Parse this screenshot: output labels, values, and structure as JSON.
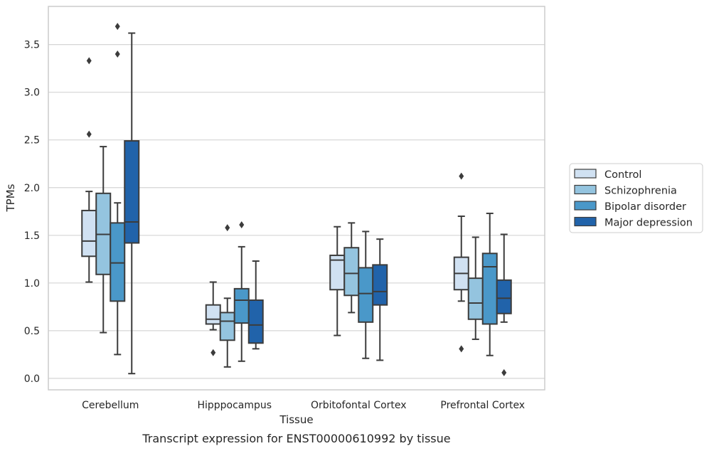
{
  "chart_data": {
    "type": "box",
    "xlabel": "Tissue",
    "ylabel": "TPMs",
    "caption": "Transcript expression for ENST00000610992 by tissue",
    "ylim": [
      -0.12,
      3.9
    ],
    "yticks": [
      0.0,
      0.5,
      1.0,
      1.5,
      2.0,
      2.5,
      3.0,
      3.5
    ],
    "ytick_labels": [
      "0.0",
      "0.5",
      "1.0",
      "1.5",
      "2.0",
      "2.5",
      "3.0",
      "3.5"
    ],
    "grid": "horizontal",
    "legend_position": "right",
    "categories": [
      "Cerebellum",
      "Hipppocampus",
      "Orbitofontal Cortex",
      "Prefrontal Cortex"
    ],
    "series": [
      {
        "name": "Control",
        "color": "#d0e1f2",
        "boxes": [
          {
            "whisker_low": 1.01,
            "q1": 1.28,
            "median": 1.44,
            "q3": 1.76,
            "whisker_high": 1.96,
            "outliers": [
              2.56,
              3.33
            ]
          },
          {
            "whisker_low": 0.51,
            "q1": 0.57,
            "median": 0.62,
            "q3": 0.77,
            "whisker_high": 1.01,
            "outliers": [
              0.27
            ]
          },
          {
            "whisker_low": 0.45,
            "q1": 0.93,
            "median": 1.24,
            "q3": 1.29,
            "whisker_high": 1.59,
            "outliers": []
          },
          {
            "whisker_low": 0.81,
            "q1": 0.93,
            "median": 1.1,
            "q3": 1.27,
            "whisker_high": 1.7,
            "outliers": [
              0.31,
              2.12
            ]
          }
        ]
      },
      {
        "name": "Schizophrenia",
        "color": "#94c4df",
        "boxes": [
          {
            "whisker_low": 0.48,
            "q1": 1.09,
            "median": 1.51,
            "q3": 1.94,
            "whisker_high": 2.43,
            "outliers": []
          },
          {
            "whisker_low": 0.12,
            "q1": 0.4,
            "median": 0.6,
            "q3": 0.69,
            "whisker_high": 0.84,
            "outliers": [
              1.58
            ]
          },
          {
            "whisker_low": 0.69,
            "q1": 0.87,
            "median": 1.1,
            "q3": 1.37,
            "whisker_high": 1.63,
            "outliers": []
          },
          {
            "whisker_low": 0.41,
            "q1": 0.62,
            "median": 0.79,
            "q3": 1.05,
            "whisker_high": 1.48,
            "outliers": []
          }
        ]
      },
      {
        "name": "Bipolar disorder",
        "color": "#4a98c9",
        "boxes": [
          {
            "whisker_low": 0.25,
            "q1": 0.81,
            "median": 1.21,
            "q3": 1.63,
            "whisker_high": 1.84,
            "outliers": [
              3.4,
              3.69
            ]
          },
          {
            "whisker_low": 0.18,
            "q1": 0.58,
            "median": 0.82,
            "q3": 0.94,
            "whisker_high": 1.38,
            "outliers": [
              1.61
            ]
          },
          {
            "whisker_low": 0.21,
            "q1": 0.59,
            "median": 0.89,
            "q3": 1.16,
            "whisker_high": 1.54,
            "outliers": []
          },
          {
            "whisker_low": 0.24,
            "q1": 0.57,
            "median": 1.17,
            "q3": 1.31,
            "whisker_high": 1.73,
            "outliers": []
          }
        ]
      },
      {
        "name": "Major depression",
        "color": "#2163aa",
        "boxes": [
          {
            "whisker_low": 0.05,
            "q1": 1.42,
            "median": 1.64,
            "q3": 2.49,
            "whisker_high": 3.62,
            "outliers": []
          },
          {
            "whisker_low": 0.31,
            "q1": 0.37,
            "median": 0.56,
            "q3": 0.82,
            "whisker_high": 1.23,
            "outliers": []
          },
          {
            "whisker_low": 0.19,
            "q1": 0.77,
            "median": 0.91,
            "q3": 1.19,
            "whisker_high": 1.46,
            "outliers": []
          },
          {
            "whisker_low": 0.59,
            "q1": 0.68,
            "median": 0.84,
            "q3": 1.03,
            "whisker_high": 1.51,
            "outliers": [
              0.06
            ]
          }
        ]
      }
    ]
  }
}
